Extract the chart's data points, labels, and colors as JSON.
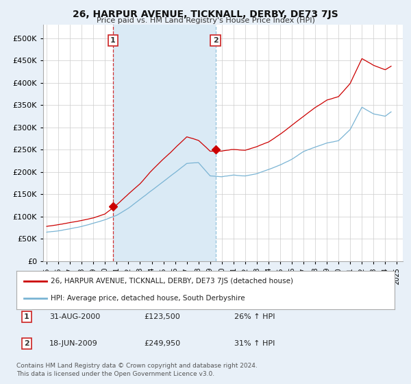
{
  "title": "26, HARPUR AVENUE, TICKNALL, DERBY, DE73 7JS",
  "subtitle": "Price paid vs. HM Land Registry's House Price Index (HPI)",
  "legend_line1": "26, HARPUR AVENUE, TICKNALL, DERBY, DE73 7JS (detached house)",
  "legend_line2": "HPI: Average price, detached house, South Derbyshire",
  "footnote": "Contains HM Land Registry data © Crown copyright and database right 2024.\nThis data is licensed under the Open Government Licence v3.0.",
  "transaction1_date": "31-AUG-2000",
  "transaction1_price": 123500,
  "transaction1_label": "26% ↑ HPI",
  "transaction2_date": "18-JUN-2009",
  "transaction2_price": 249950,
  "transaction2_label": "31% ↑ HPI",
  "ylim": [
    0,
    530000
  ],
  "yticks": [
    0,
    50000,
    100000,
    150000,
    200000,
    250000,
    300000,
    350000,
    400000,
    450000,
    500000
  ],
  "xlim_left": 1994.7,
  "xlim_right": 2025.5,
  "t1": 2000.667,
  "t2": 2009.458,
  "red_color": "#cc0000",
  "blue_color": "#7ab4d4",
  "shade_color": "#daeaf5",
  "background_color": "#e8f0f8",
  "plot_bg": "#ffffff",
  "grid_color": "#cccccc",
  "hpi_knots_x": [
    1995,
    1996,
    1997,
    1998,
    1999,
    2000,
    2001,
    2002,
    2003,
    2004,
    2005,
    2006,
    2007,
    2008,
    2009,
    2010,
    2011,
    2012,
    2013,
    2014,
    2015,
    2016,
    2017,
    2018,
    2019,
    2020,
    2021,
    2022,
    2023,
    2024,
    2025
  ],
  "hpi_knots_y": [
    65000,
    68000,
    72000,
    78000,
    85000,
    92000,
    102000,
    118000,
    138000,
    158000,
    178000,
    198000,
    218000,
    220000,
    190000,
    188000,
    192000,
    190000,
    195000,
    205000,
    215000,
    228000,
    245000,
    255000,
    265000,
    270000,
    295000,
    345000,
    330000,
    325000,
    345000
  ],
  "red_knots_x": [
    1995,
    1996,
    1997,
    1998,
    1999,
    2000,
    2001,
    2002,
    2003,
    2004,
    2005,
    2006,
    2007,
    2008,
    2009,
    2010,
    2011,
    2012,
    2013,
    2014,
    2015,
    2016,
    2017,
    2018,
    2019,
    2020,
    2021,
    2022,
    2023,
    2024,
    2025
  ],
  "red_knots_y": [
    78000,
    82000,
    87000,
    92000,
    98000,
    107000,
    128000,
    152000,
    175000,
    205000,
    230000,
    255000,
    280000,
    272000,
    248000,
    248000,
    252000,
    250000,
    258000,
    268000,
    285000,
    305000,
    325000,
    345000,
    362000,
    370000,
    400000,
    455000,
    440000,
    430000,
    445000
  ]
}
